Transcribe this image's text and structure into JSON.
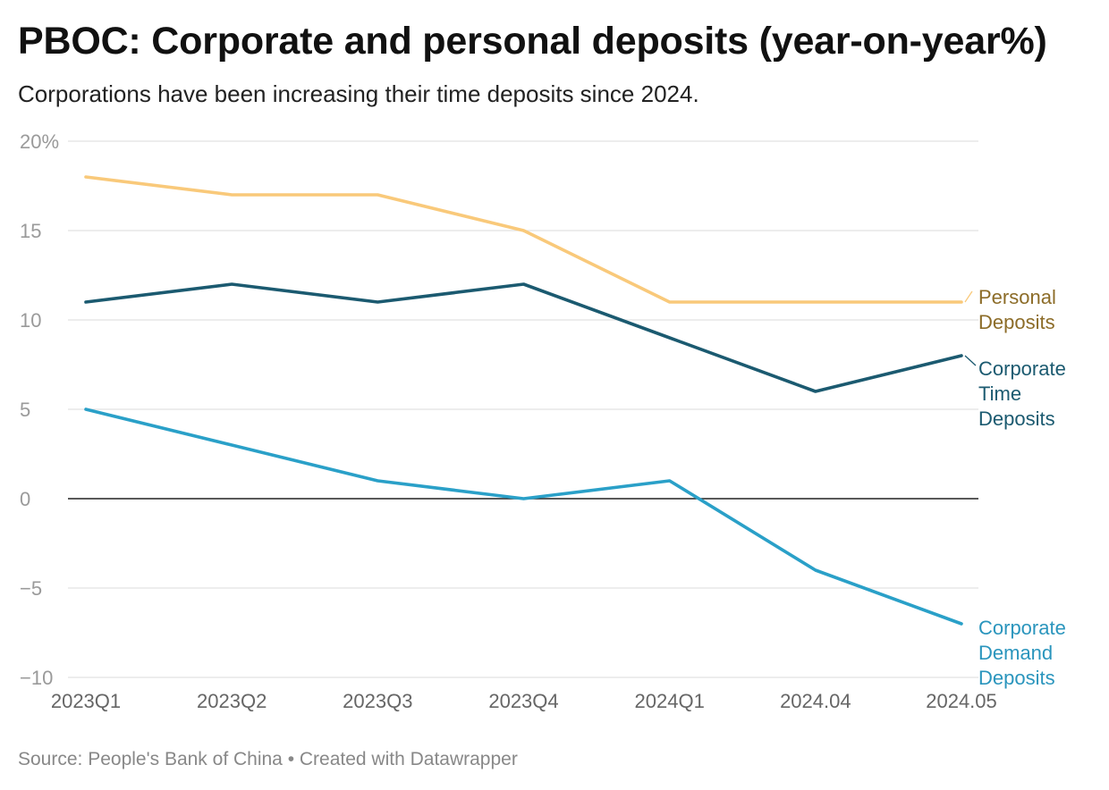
{
  "title": "PBOC: Corporate and personal deposits (year-on-year%)",
  "subtitle": "Corporations have been increasing their time deposits since 2024.",
  "footer": {
    "source": "Source: People's Bank of China • Created with Datawrapper"
  },
  "chart_data": {
    "type": "line",
    "title": "PBOC: Corporate and personal deposits (year-on-year%)",
    "subtitle": "Corporations have been increasing their time deposits since 2024.",
    "x": [
      "2023Q1",
      "2023Q2",
      "2023Q3",
      "2023Q4",
      "2024Q1",
      "2024.04",
      "2024.05"
    ],
    "ylim": [
      -10,
      20
    ],
    "yticks": [
      20,
      15,
      10,
      5,
      0,
      -5,
      -10
    ],
    "ytick_labels": [
      "20%",
      "15",
      "10",
      "5",
      "0",
      "−5",
      "−10"
    ],
    "grid": true,
    "zero_line": true,
    "legend": "direct labels at right end of lines",
    "series": [
      {
        "name": "Personal Deposits",
        "label_lines": [
          "Personal",
          "Deposits"
        ],
        "color": "#f9c97a",
        "label_color": "#8c6c28",
        "values": [
          18,
          17,
          17,
          15,
          11,
          11,
          11
        ]
      },
      {
        "name": "Corporate Time Deposits",
        "label_lines": [
          "Corporate",
          "Time",
          "Deposits"
        ],
        "color": "#1b5a70",
        "label_color": "#1b5a70",
        "values": [
          11,
          12,
          11,
          12,
          9,
          6,
          8
        ]
      },
      {
        "name": "Corporate Demand Deposits",
        "label_lines": [
          "Corporate",
          "Demand",
          "Deposits"
        ],
        "color": "#2aa0c8",
        "label_color": "#2a95bd",
        "values": [
          5,
          3,
          1,
          0,
          1,
          -4,
          -7
        ]
      }
    ]
  }
}
